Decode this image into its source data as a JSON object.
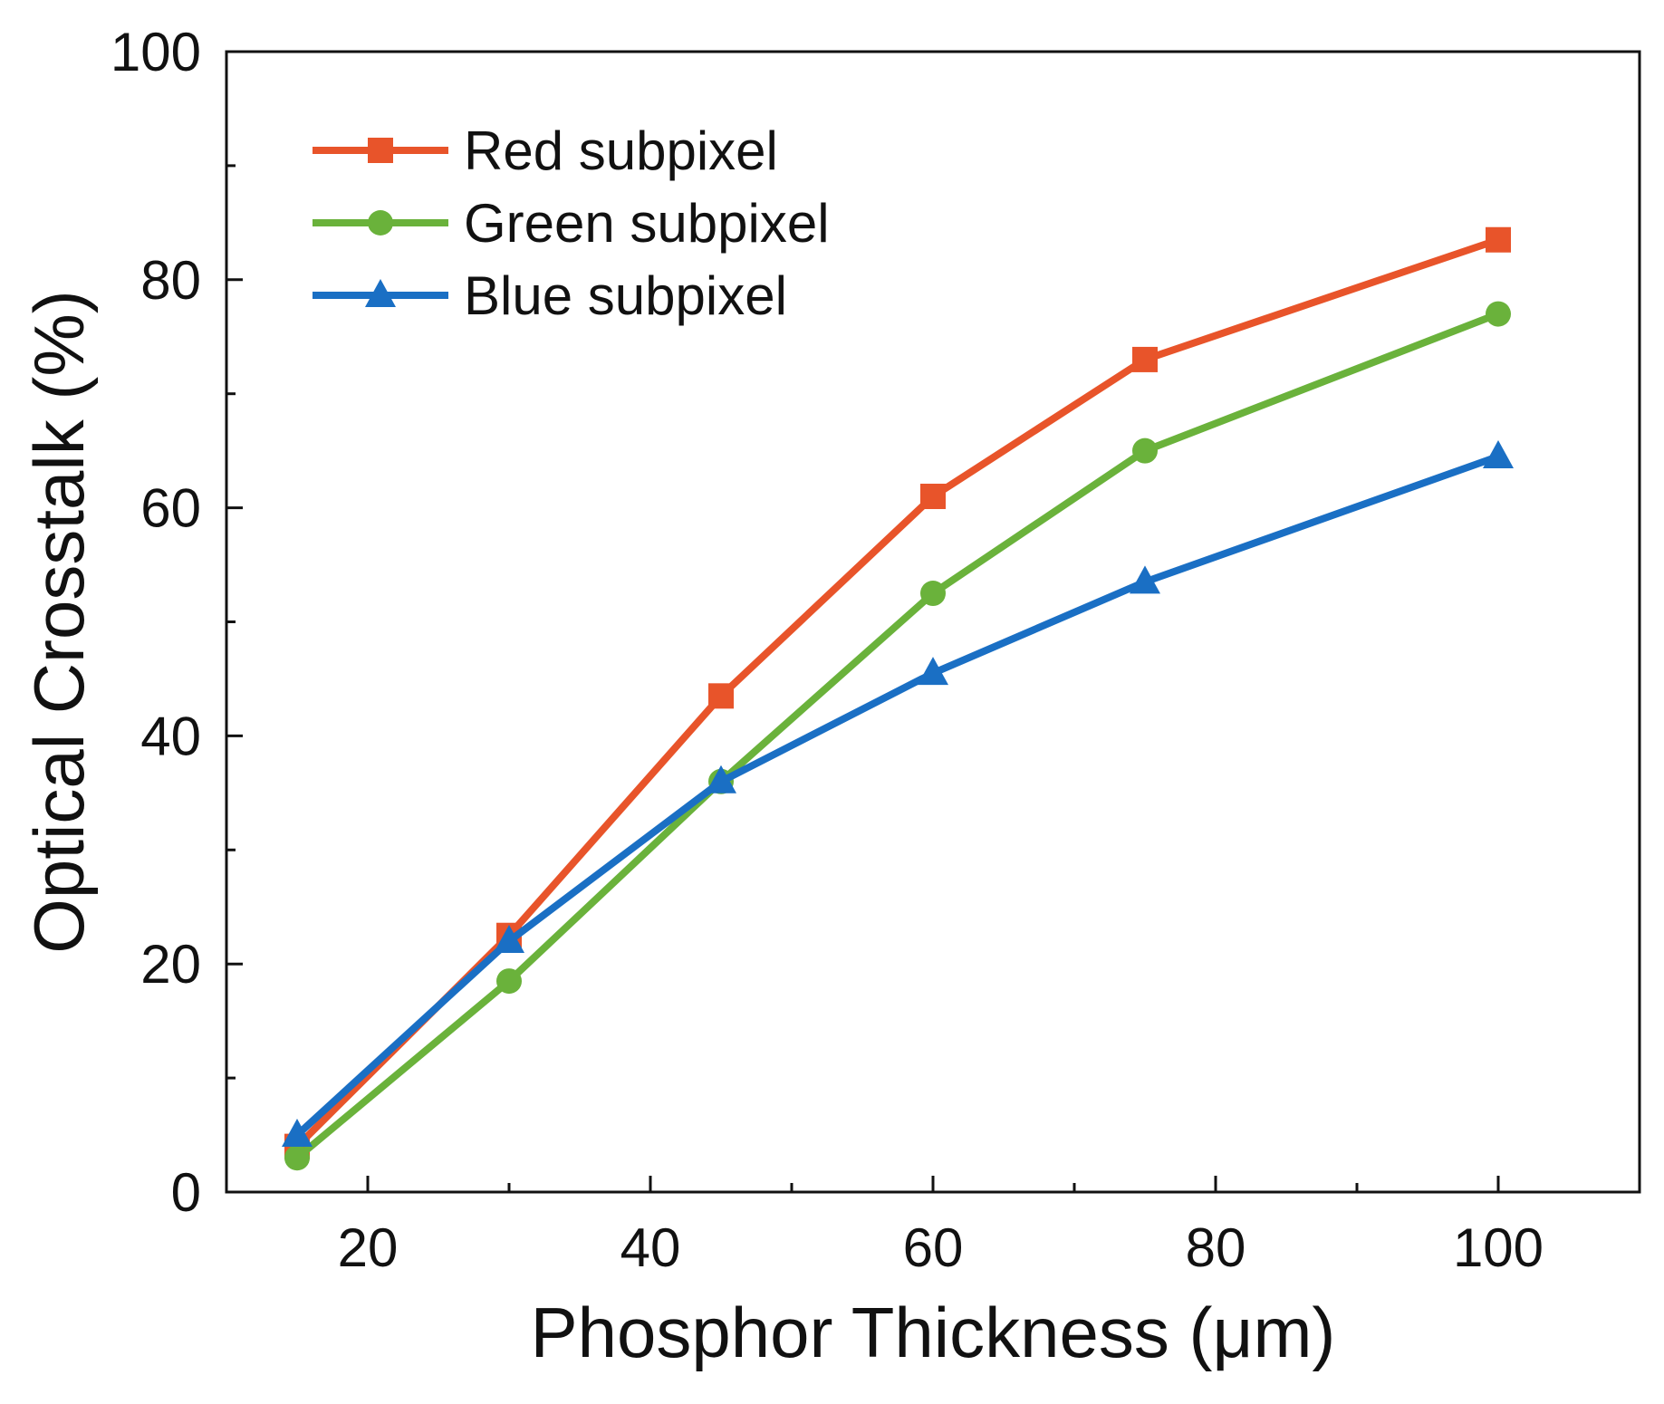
{
  "chart_data": {
    "type": "line",
    "title": "",
    "xlabel": "Phosphor Thickness (μm)",
    "ylabel": "Optical Crosstalk (%)",
    "xlim": [
      10,
      110
    ],
    "ylim": [
      0,
      100
    ],
    "x_ticks": [
      20,
      40,
      60,
      80,
      100
    ],
    "x_minor_ticks": [
      30,
      50,
      70,
      90
    ],
    "y_ticks": [
      0,
      20,
      40,
      60,
      80,
      100
    ],
    "y_minor_ticks": [
      10,
      30,
      50,
      70,
      90
    ],
    "grid": false,
    "legend_position": "top-left",
    "x": [
      15,
      30,
      45,
      60,
      75,
      100
    ],
    "series": [
      {
        "name": "Red subpixel",
        "color": "#e8542a",
        "marker": "square",
        "values": [
          4.0,
          22.5,
          43.5,
          61.0,
          73.0,
          83.5
        ]
      },
      {
        "name": "Green subpixel",
        "color": "#6ab23b",
        "marker": "circle",
        "values": [
          3.0,
          18.5,
          36.0,
          52.5,
          65.0,
          77.0
        ]
      },
      {
        "name": "Blue subpixel",
        "color": "#1a6fc4",
        "marker": "triangle",
        "values": [
          5.0,
          22.0,
          36.0,
          45.5,
          53.5,
          64.5
        ]
      }
    ]
  }
}
